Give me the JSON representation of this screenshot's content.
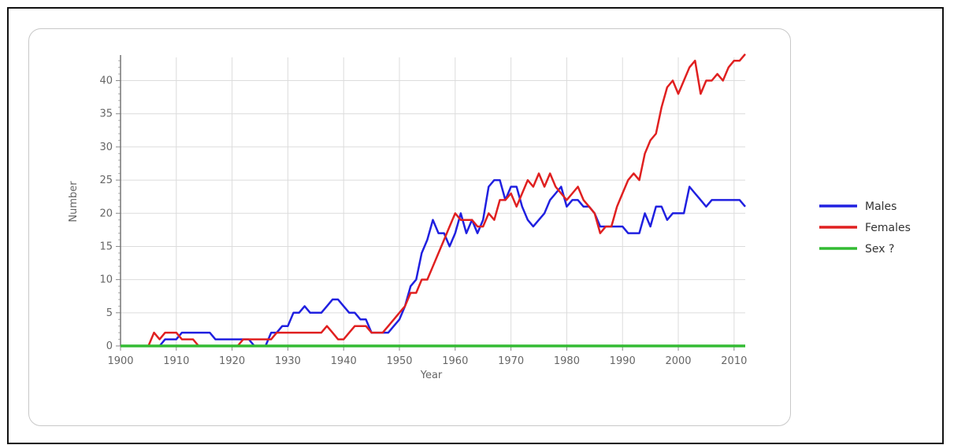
{
  "chart_data": {
    "type": "line",
    "xlabel": "Year",
    "ylabel": "Number",
    "xlim": [
      1900,
      2012
    ],
    "ylim": [
      0,
      43.5
    ],
    "xticks": [
      1900,
      1910,
      1920,
      1930,
      1940,
      1950,
      1960,
      1970,
      1980,
      1990,
      2000,
      2010
    ],
    "yticks": [
      0,
      5,
      10,
      15,
      20,
      25,
      30,
      35,
      40
    ],
    "grid": true,
    "legend_position": "right",
    "series": [
      {
        "name": "Males",
        "color": "#2020e0",
        "points": [
          [
            1900,
            0
          ],
          [
            1905,
            0
          ],
          [
            1906,
            0
          ],
          [
            1907,
            0
          ],
          [
            1908,
            1
          ],
          [
            1909,
            1
          ],
          [
            1910,
            1
          ],
          [
            1911,
            2
          ],
          [
            1912,
            2
          ],
          [
            1913,
            2
          ],
          [
            1914,
            2
          ],
          [
            1915,
            2
          ],
          [
            1916,
            2
          ],
          [
            1917,
            1
          ],
          [
            1918,
            1
          ],
          [
            1919,
            1
          ],
          [
            1920,
            1
          ],
          [
            1921,
            1
          ],
          [
            1922,
            1
          ],
          [
            1923,
            1
          ],
          [
            1924,
            0
          ],
          [
            1925,
            0
          ],
          [
            1926,
            0
          ],
          [
            1927,
            2
          ],
          [
            1928,
            2
          ],
          [
            1929,
            3
          ],
          [
            1930,
            3
          ],
          [
            1931,
            5
          ],
          [
            1932,
            5
          ],
          [
            1933,
            6
          ],
          [
            1934,
            5
          ],
          [
            1935,
            5
          ],
          [
            1936,
            5
          ],
          [
            1937,
            6
          ],
          [
            1938,
            7
          ],
          [
            1939,
            7
          ],
          [
            1940,
            6
          ],
          [
            1941,
            5
          ],
          [
            1942,
            5
          ],
          [
            1943,
            4
          ],
          [
            1944,
            4
          ],
          [
            1945,
            2
          ],
          [
            1946,
            2
          ],
          [
            1947,
            2
          ],
          [
            1948,
            2
          ],
          [
            1949,
            3
          ],
          [
            1950,
            4
          ],
          [
            1951,
            6
          ],
          [
            1952,
            9
          ],
          [
            1953,
            10
          ],
          [
            1954,
            14
          ],
          [
            1955,
            16
          ],
          [
            1956,
            19
          ],
          [
            1957,
            17
          ],
          [
            1958,
            17
          ],
          [
            1959,
            15
          ],
          [
            1960,
            17
          ],
          [
            1961,
            20
          ],
          [
            1962,
            17
          ],
          [
            1963,
            19
          ],
          [
            1964,
            17
          ],
          [
            1965,
            19
          ],
          [
            1966,
            24
          ],
          [
            1967,
            25
          ],
          [
            1968,
            25
          ],
          [
            1969,
            22
          ],
          [
            1970,
            24
          ],
          [
            1971,
            24
          ],
          [
            1972,
            21
          ],
          [
            1973,
            19
          ],
          [
            1974,
            18
          ],
          [
            1975,
            19
          ],
          [
            1976,
            20
          ],
          [
            1977,
            22
          ],
          [
            1978,
            23
          ],
          [
            1979,
            24
          ],
          [
            1980,
            21
          ],
          [
            1981,
            22
          ],
          [
            1982,
            22
          ],
          [
            1983,
            21
          ],
          [
            1984,
            21
          ],
          [
            1985,
            20
          ],
          [
            1986,
            18
          ],
          [
            1987,
            18
          ],
          [
            1988,
            18
          ],
          [
            1989,
            18
          ],
          [
            1990,
            18
          ],
          [
            1991,
            17
          ],
          [
            1992,
            17
          ],
          [
            1993,
            17
          ],
          [
            1994,
            20
          ],
          [
            1995,
            18
          ],
          [
            1996,
            21
          ],
          [
            1997,
            21
          ],
          [
            1998,
            19
          ],
          [
            1999,
            20
          ],
          [
            2000,
            20
          ],
          [
            2001,
            20
          ],
          [
            2002,
            24
          ],
          [
            2003,
            23
          ],
          [
            2004,
            22
          ],
          [
            2005,
            21
          ],
          [
            2006,
            22
          ],
          [
            2007,
            22
          ],
          [
            2008,
            22
          ],
          [
            2009,
            22
          ],
          [
            2010,
            22
          ],
          [
            2011,
            22
          ],
          [
            2012,
            21
          ]
        ]
      },
      {
        "name": "Females",
        "color": "#e02020",
        "points": [
          [
            1900,
            0
          ],
          [
            1905,
            0
          ],
          [
            1906,
            2
          ],
          [
            1907,
            1
          ],
          [
            1908,
            2
          ],
          [
            1909,
            2
          ],
          [
            1910,
            2
          ],
          [
            1911,
            1
          ],
          [
            1912,
            1
          ],
          [
            1913,
            1
          ],
          [
            1914,
            0
          ],
          [
            1915,
            0
          ],
          [
            1916,
            0
          ],
          [
            1917,
            0
          ],
          [
            1918,
            0
          ],
          [
            1919,
            0
          ],
          [
            1920,
            0
          ],
          [
            1921,
            0
          ],
          [
            1922,
            1
          ],
          [
            1923,
            1
          ],
          [
            1924,
            1
          ],
          [
            1925,
            1
          ],
          [
            1926,
            1
          ],
          [
            1927,
            1
          ],
          [
            1928,
            2
          ],
          [
            1929,
            2
          ],
          [
            1930,
            2
          ],
          [
            1931,
            2
          ],
          [
            1932,
            2
          ],
          [
            1933,
            2
          ],
          [
            1934,
            2
          ],
          [
            1935,
            2
          ],
          [
            1936,
            2
          ],
          [
            1937,
            3
          ],
          [
            1938,
            2
          ],
          [
            1939,
            1
          ],
          [
            1940,
            1
          ],
          [
            1941,
            2
          ],
          [
            1942,
            3
          ],
          [
            1943,
            3
          ],
          [
            1944,
            3
          ],
          [
            1945,
            2
          ],
          [
            1946,
            2
          ],
          [
            1947,
            2
          ],
          [
            1948,
            3
          ],
          [
            1949,
            4
          ],
          [
            1950,
            5
          ],
          [
            1951,
            6
          ],
          [
            1952,
            8
          ],
          [
            1953,
            8
          ],
          [
            1954,
            10
          ],
          [
            1955,
            10
          ],
          [
            1956,
            12
          ],
          [
            1957,
            14
          ],
          [
            1958,
            16
          ],
          [
            1959,
            18
          ],
          [
            1960,
            20
          ],
          [
            1961,
            19
          ],
          [
            1962,
            19
          ],
          [
            1963,
            19
          ],
          [
            1964,
            18
          ],
          [
            1965,
            18
          ],
          [
            1966,
            20
          ],
          [
            1967,
            19
          ],
          [
            1968,
            22
          ],
          [
            1969,
            22
          ],
          [
            1970,
            23
          ],
          [
            1971,
            21
          ],
          [
            1972,
            23
          ],
          [
            1973,
            25
          ],
          [
            1974,
            24
          ],
          [
            1975,
            26
          ],
          [
            1976,
            24
          ],
          [
            1977,
            26
          ],
          [
            1978,
            24
          ],
          [
            1979,
            23
          ],
          [
            1980,
            22
          ],
          [
            1981,
            23
          ],
          [
            1982,
            24
          ],
          [
            1983,
            22
          ],
          [
            1984,
            21
          ],
          [
            1985,
            20
          ],
          [
            1986,
            17
          ],
          [
            1987,
            18
          ],
          [
            1988,
            18
          ],
          [
            1989,
            21
          ],
          [
            1990,
            23
          ],
          [
            1991,
            25
          ],
          [
            1992,
            26
          ],
          [
            1993,
            25
          ],
          [
            1994,
            29
          ],
          [
            1995,
            31
          ],
          [
            1996,
            32
          ],
          [
            1997,
            36
          ],
          [
            1998,
            39
          ],
          [
            1999,
            40
          ],
          [
            2000,
            38
          ],
          [
            2001,
            40
          ],
          [
            2002,
            42
          ],
          [
            2003,
            43
          ],
          [
            2004,
            38
          ],
          [
            2005,
            40
          ],
          [
            2006,
            40
          ],
          [
            2007,
            41
          ],
          [
            2008,
            40
          ],
          [
            2009,
            42
          ],
          [
            2010,
            43
          ],
          [
            2011,
            43
          ],
          [
            2012,
            44
          ]
        ]
      },
      {
        "name": "Sex ?",
        "color": "#33bb33",
        "points": [
          [
            1900,
            0
          ],
          [
            1910,
            0
          ],
          [
            1920,
            0
          ],
          [
            1930,
            0
          ],
          [
            1940,
            0
          ],
          [
            1950,
            0
          ],
          [
            1960,
            0
          ],
          [
            1970,
            0
          ],
          [
            1980,
            0
          ],
          [
            1990,
            0
          ],
          [
            2000,
            0
          ],
          [
            2010,
            0
          ],
          [
            2012,
            0
          ]
        ]
      }
    ]
  }
}
